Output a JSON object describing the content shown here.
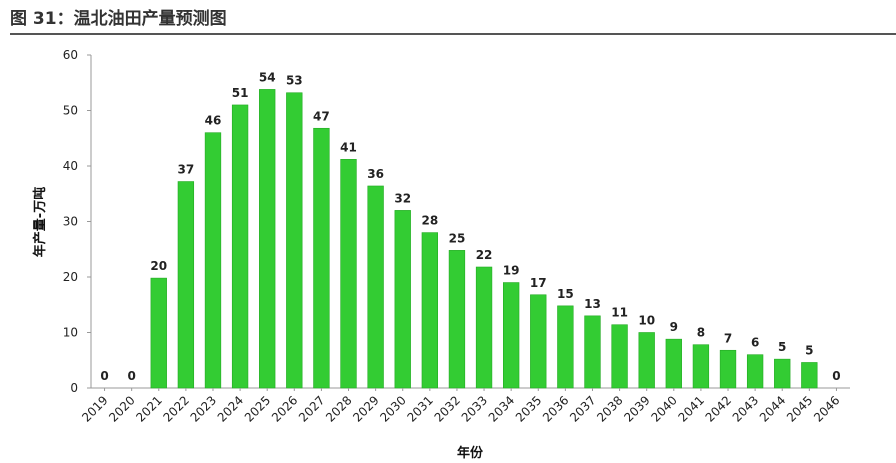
{
  "figure": {
    "title": "图 31：温北油田产量预测图"
  },
  "chart_data": {
    "type": "bar",
    "title": "",
    "xlabel": "年份",
    "ylabel": "年产量-万吨",
    "categories": [
      "2019",
      "2020",
      "2021",
      "2022",
      "2023",
      "2024",
      "2025",
      "2026",
      "2027",
      "2028",
      "2029",
      "2030",
      "2031",
      "2032",
      "2033",
      "2034",
      "2035",
      "2036",
      "2037",
      "2038",
      "2039",
      "2040",
      "2041",
      "2042",
      "2043",
      "2044",
      "2045",
      "2046"
    ],
    "values": [
      0,
      0,
      20,
      37,
      46,
      51,
      54,
      53,
      47,
      41,
      36,
      32,
      28,
      25,
      22,
      19,
      17,
      15,
      13,
      11,
      10,
      9,
      8,
      7,
      6,
      5,
      5,
      0
    ],
    "data_labels": [
      "0",
      "0",
      "20",
      "37",
      "46",
      "51",
      "54",
      "53",
      "47",
      "41",
      "36",
      "32",
      "28",
      "25",
      "22",
      "19",
      "17",
      "15",
      "13",
      "11",
      "10",
      "9",
      "8",
      "7",
      "6",
      "5",
      "5",
      "0"
    ],
    "bar_heights": [
      0,
      0,
      19.8,
      37.2,
      46,
      51,
      53.8,
      53.2,
      46.8,
      41.2,
      36.4,
      32,
      28,
      24.8,
      21.8,
      19,
      16.8,
      14.8,
      13,
      11.4,
      10,
      8.8,
      7.8,
      6.8,
      6,
      5.2,
      4.6,
      0
    ],
    "ylim": [
      0,
      60
    ],
    "yticks": [
      0,
      10,
      20,
      30,
      40,
      50,
      60
    ],
    "grid": false,
    "legend": "none",
    "bar_color": "#33cc33",
    "bar_edge_color": "#22aa22"
  }
}
